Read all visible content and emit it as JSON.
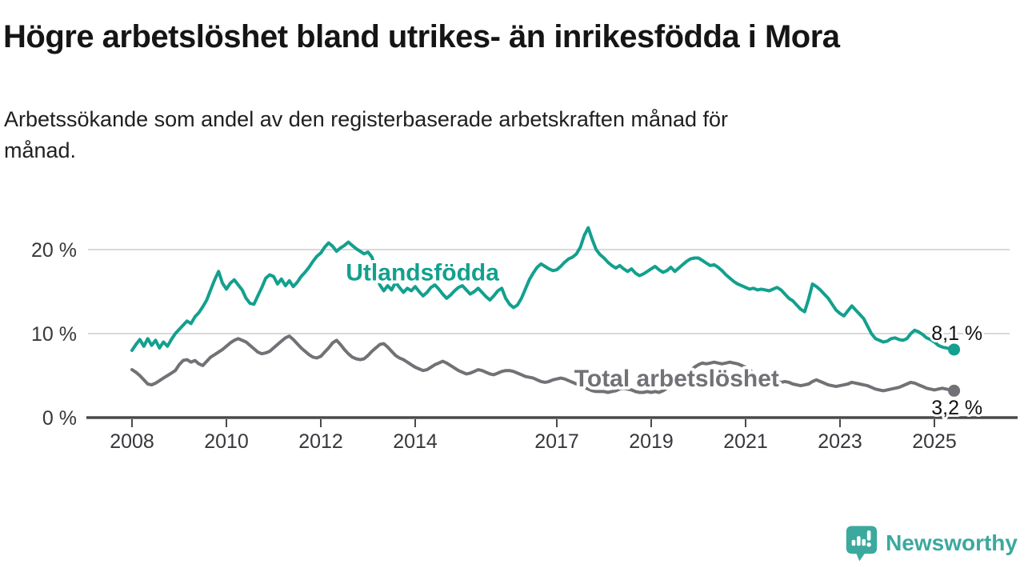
{
  "header": {
    "title": "Högre arbetslöshet bland utrikes- än inrikesfödda i Mora",
    "subtitle": "Arbetssökande som andel av den registerbaserade arbetskraften månad för\nmånad."
  },
  "branding": {
    "logo_text": "Newsworthy",
    "logo_icon": "speech-bubble-with-bar-chart-and-exclamation"
  },
  "colors": {
    "accent_teal": "#13a08e",
    "series_gray": "#717176",
    "grid": "#d9d9d9",
    "axis": "#4a4a4e",
    "tick_text": "#38383c",
    "annotation_text": "#111111",
    "logo_teal": "#3ba99e",
    "background": "#ffffff"
  },
  "chart_data": {
    "type": "line",
    "title": "Högre arbetslöshet bland utrikes- än inrikesfödda i Mora",
    "subtitle": "Arbetssökande som andel av den registerbaserade arbetskraften månad för månad.",
    "frequency": "monthly",
    "x_start_year": 2008,
    "x_end": "2025-06",
    "xlim_years": [
      2008,
      2026
    ],
    "ylim": [
      0,
      24
    ],
    "grid": "horizontal-only",
    "legend_position": "inline-labels-on-lines",
    "x_tick_years": [
      2008,
      2010,
      2012,
      2014,
      2017,
      2019,
      2021,
      2023,
      2025
    ],
    "y_ticks": [
      {
        "value": 0,
        "label": "0 %"
      },
      {
        "value": 10,
        "label": "10 %"
      },
      {
        "value": 20,
        "label": "20 %"
      }
    ],
    "series": [
      {
        "id": "utlandsfodda",
        "name": "Utlandsfödda",
        "color": "#13a08e",
        "end_value_label": "8,1 %",
        "label_pos": {
          "year": 2012.53,
          "value": 16.35,
          "anchor": "start"
        },
        "end_label_pos": {
          "year": 2026.02,
          "value": 9.24,
          "anchor": "end"
        },
        "values": [
          8.0,
          8.7,
          9.3,
          8.5,
          9.4,
          8.6,
          9.2,
          8.3,
          9.0,
          8.5,
          9.3,
          10.0,
          10.5,
          11.0,
          11.5,
          11.2,
          12.0,
          12.5,
          13.2,
          14.0,
          15.2,
          16.4,
          17.4,
          16.0,
          15.3,
          16.0,
          16.4,
          15.8,
          15.2,
          14.2,
          13.6,
          13.5,
          14.5,
          15.5,
          16.6,
          17.0,
          16.8,
          15.9,
          16.5,
          15.7,
          16.3,
          15.6,
          16.1,
          16.8,
          17.3,
          17.9,
          18.6,
          19.2,
          19.6,
          20.3,
          20.8,
          20.4,
          19.8,
          20.2,
          20.5,
          20.9,
          20.5,
          20.1,
          19.8,
          19.5,
          19.7,
          19.1,
          17.6,
          15.8,
          15.1,
          15.7,
          15.2,
          16.1,
          15.5,
          14.9,
          15.4,
          15.1,
          15.6,
          15.0,
          14.5,
          14.9,
          15.5,
          15.8,
          15.3,
          14.7,
          14.2,
          14.6,
          15.1,
          15.5,
          15.7,
          15.2,
          14.7,
          15.0,
          15.4,
          14.9,
          14.4,
          14.0,
          14.5,
          15.1,
          15.4,
          14.2,
          13.5,
          13.1,
          13.4,
          14.2,
          15.3,
          16.4,
          17.2,
          17.9,
          18.3,
          18.0,
          17.7,
          17.5,
          17.6,
          18.0,
          18.5,
          18.9,
          19.1,
          19.5,
          20.3,
          21.7,
          22.6,
          21.2,
          20.0,
          19.4,
          19.0,
          18.5,
          18.1,
          17.8,
          18.1,
          17.7,
          17.4,
          17.7,
          17.2,
          16.9,
          17.1,
          17.4,
          17.7,
          18.0,
          17.6,
          17.3,
          17.5,
          17.9,
          17.4,
          17.8,
          18.2,
          18.6,
          18.9,
          19.0,
          19.0,
          18.7,
          18.4,
          18.1,
          18.2,
          17.9,
          17.5,
          17.0,
          16.6,
          16.2,
          15.9,
          15.7,
          15.5,
          15.3,
          15.4,
          15.2,
          15.3,
          15.2,
          15.1,
          15.3,
          15.5,
          15.2,
          14.7,
          14.2,
          13.9,
          13.4,
          12.9,
          12.6,
          14.1,
          15.9,
          15.6,
          15.2,
          14.7,
          14.2,
          13.5,
          12.8,
          12.4,
          12.1,
          12.7,
          13.3,
          12.8,
          12.3,
          11.8,
          10.9,
          10.0,
          9.4,
          9.2,
          9.0,
          9.1,
          9.4,
          9.5,
          9.3,
          9.2,
          9.4,
          10.0,
          10.4,
          10.2,
          9.9,
          9.5,
          9.3,
          9.0,
          8.6,
          8.4,
          8.3,
          8.2,
          8.1
        ]
      },
      {
        "id": "total-arbetsloshet",
        "name": "Total arbetslöshet",
        "color": "#717176",
        "end_value_label": "3,2 %",
        "label_pos": {
          "year": 2019.54,
          "value": 3.72,
          "anchor": "middle"
        },
        "end_label_pos": {
          "year": 2026.02,
          "value": 0.38,
          "anchor": "end"
        },
        "values": [
          5.7,
          5.4,
          5.0,
          4.5,
          4.0,
          3.9,
          4.1,
          4.4,
          4.7,
          5.0,
          5.3,
          5.6,
          6.3,
          6.8,
          6.9,
          6.6,
          6.8,
          6.4,
          6.2,
          6.7,
          7.2,
          7.5,
          7.8,
          8.1,
          8.5,
          8.9,
          9.2,
          9.4,
          9.2,
          9.0,
          8.6,
          8.2,
          7.8,
          7.6,
          7.7,
          7.9,
          8.3,
          8.7,
          9.1,
          9.5,
          9.7,
          9.3,
          8.8,
          8.3,
          7.9,
          7.5,
          7.2,
          7.1,
          7.3,
          7.8,
          8.3,
          8.9,
          9.2,
          8.7,
          8.1,
          7.6,
          7.2,
          7.0,
          6.9,
          7.0,
          7.4,
          7.9,
          8.3,
          8.7,
          8.8,
          8.4,
          7.9,
          7.4,
          7.1,
          6.9,
          6.6,
          6.3,
          6.0,
          5.8,
          5.6,
          5.7,
          6.0,
          6.3,
          6.5,
          6.7,
          6.5,
          6.2,
          5.9,
          5.6,
          5.4,
          5.2,
          5.3,
          5.5,
          5.7,
          5.6,
          5.4,
          5.2,
          5.1,
          5.3,
          5.5,
          5.6,
          5.6,
          5.5,
          5.3,
          5.1,
          4.9,
          4.8,
          4.7,
          4.5,
          4.3,
          4.2,
          4.3,
          4.5,
          4.6,
          4.7,
          4.6,
          4.4,
          4.2,
          4.0,
          3.8,
          3.6,
          3.4,
          3.2,
          3.1,
          3.1,
          3.1,
          3.0,
          3.1,
          3.2,
          3.4,
          3.5,
          3.4,
          3.3,
          3.1,
          3.0,
          3.0,
          3.1,
          3.0,
          3.1,
          3.0,
          3.2,
          3.5,
          3.8,
          4.1,
          4.4,
          4.8,
          5.2,
          5.6,
          6.0,
          6.3,
          6.5,
          6.4,
          6.5,
          6.6,
          6.5,
          6.4,
          6.5,
          6.6,
          6.5,
          6.4,
          6.2,
          6.0,
          5.7,
          5.3,
          5.0,
          4.8,
          4.6,
          4.5,
          4.4,
          4.3,
          4.2,
          4.3,
          4.2,
          4.0,
          3.9,
          3.8,
          3.9,
          4.0,
          4.3,
          4.5,
          4.3,
          4.1,
          3.9,
          3.8,
          3.7,
          3.8,
          3.9,
          4.0,
          4.2,
          4.1,
          4.0,
          3.9,
          3.8,
          3.6,
          3.4,
          3.3,
          3.2,
          3.3,
          3.4,
          3.5,
          3.6,
          3.8,
          4.0,
          4.2,
          4.1,
          3.9,
          3.7,
          3.5,
          3.4,
          3.3,
          3.4,
          3.5,
          3.4,
          3.3,
          3.2
        ]
      }
    ]
  }
}
